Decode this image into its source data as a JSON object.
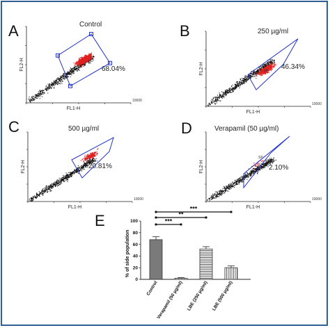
{
  "chart_data": [
    {
      "type": "scatter",
      "panel": "A",
      "annotation": "Control",
      "gate_percent": "68.04%",
      "xlabel": "FL1-H",
      "ylabel": "FL2-H",
      "x_max_tick": "10000",
      "gate_color": "#2233cc",
      "dot_colors": [
        "#111111",
        "#e02020"
      ],
      "points_inside_gate_fraction": 0.6804
    },
    {
      "type": "scatter",
      "panel": "B",
      "annotation": "250 µg/ml",
      "gate_percent": "46.34%",
      "gate_label": "SP",
      "xlabel": "FL1-H",
      "ylabel": "FL2-H",
      "x_max_tick": "10000",
      "points_inside_gate_fraction": 0.4634
    },
    {
      "type": "scatter",
      "panel": "C",
      "annotation": "500 µg/ml",
      "gate_percent": "20.81%",
      "gate_label": "SP",
      "xlabel": "FL1-H",
      "ylabel": "FL2-H",
      "x_max_tick": "10000",
      "points_inside_gate_fraction": 0.2081
    },
    {
      "type": "scatter",
      "panel": "D",
      "annotation": "Verapamil (50 µg/ml)",
      "gate_percent": "2.10%",
      "gate_label": "SP",
      "xlabel": "FL1-H",
      "ylabel": "FL2-H",
      "x_max_tick": "10000",
      "points_inside_gate_fraction": 0.021
    },
    {
      "type": "bar",
      "panel": "E",
      "ylabel": "% of side population",
      "categories": [
        "Control",
        "Verapamil (50 µg/ml)",
        "LBE (250 µg/ml)",
        "LBE (500 µg/ml)"
      ],
      "values": [
        68,
        2,
        52,
        20
      ],
      "errors": [
        5,
        1,
        4,
        3
      ],
      "ylim": [
        0,
        100
      ],
      "significance": [
        {
          "from": "Control",
          "to": "Verapamil (50 µg/ml)",
          "label": "***"
        },
        {
          "from": "Control",
          "to": "LBE (250 µg/ml)",
          "label": "**"
        },
        {
          "from": "Control",
          "to": "LBE (500 µg/ml)",
          "label": "***"
        }
      ]
    }
  ]
}
